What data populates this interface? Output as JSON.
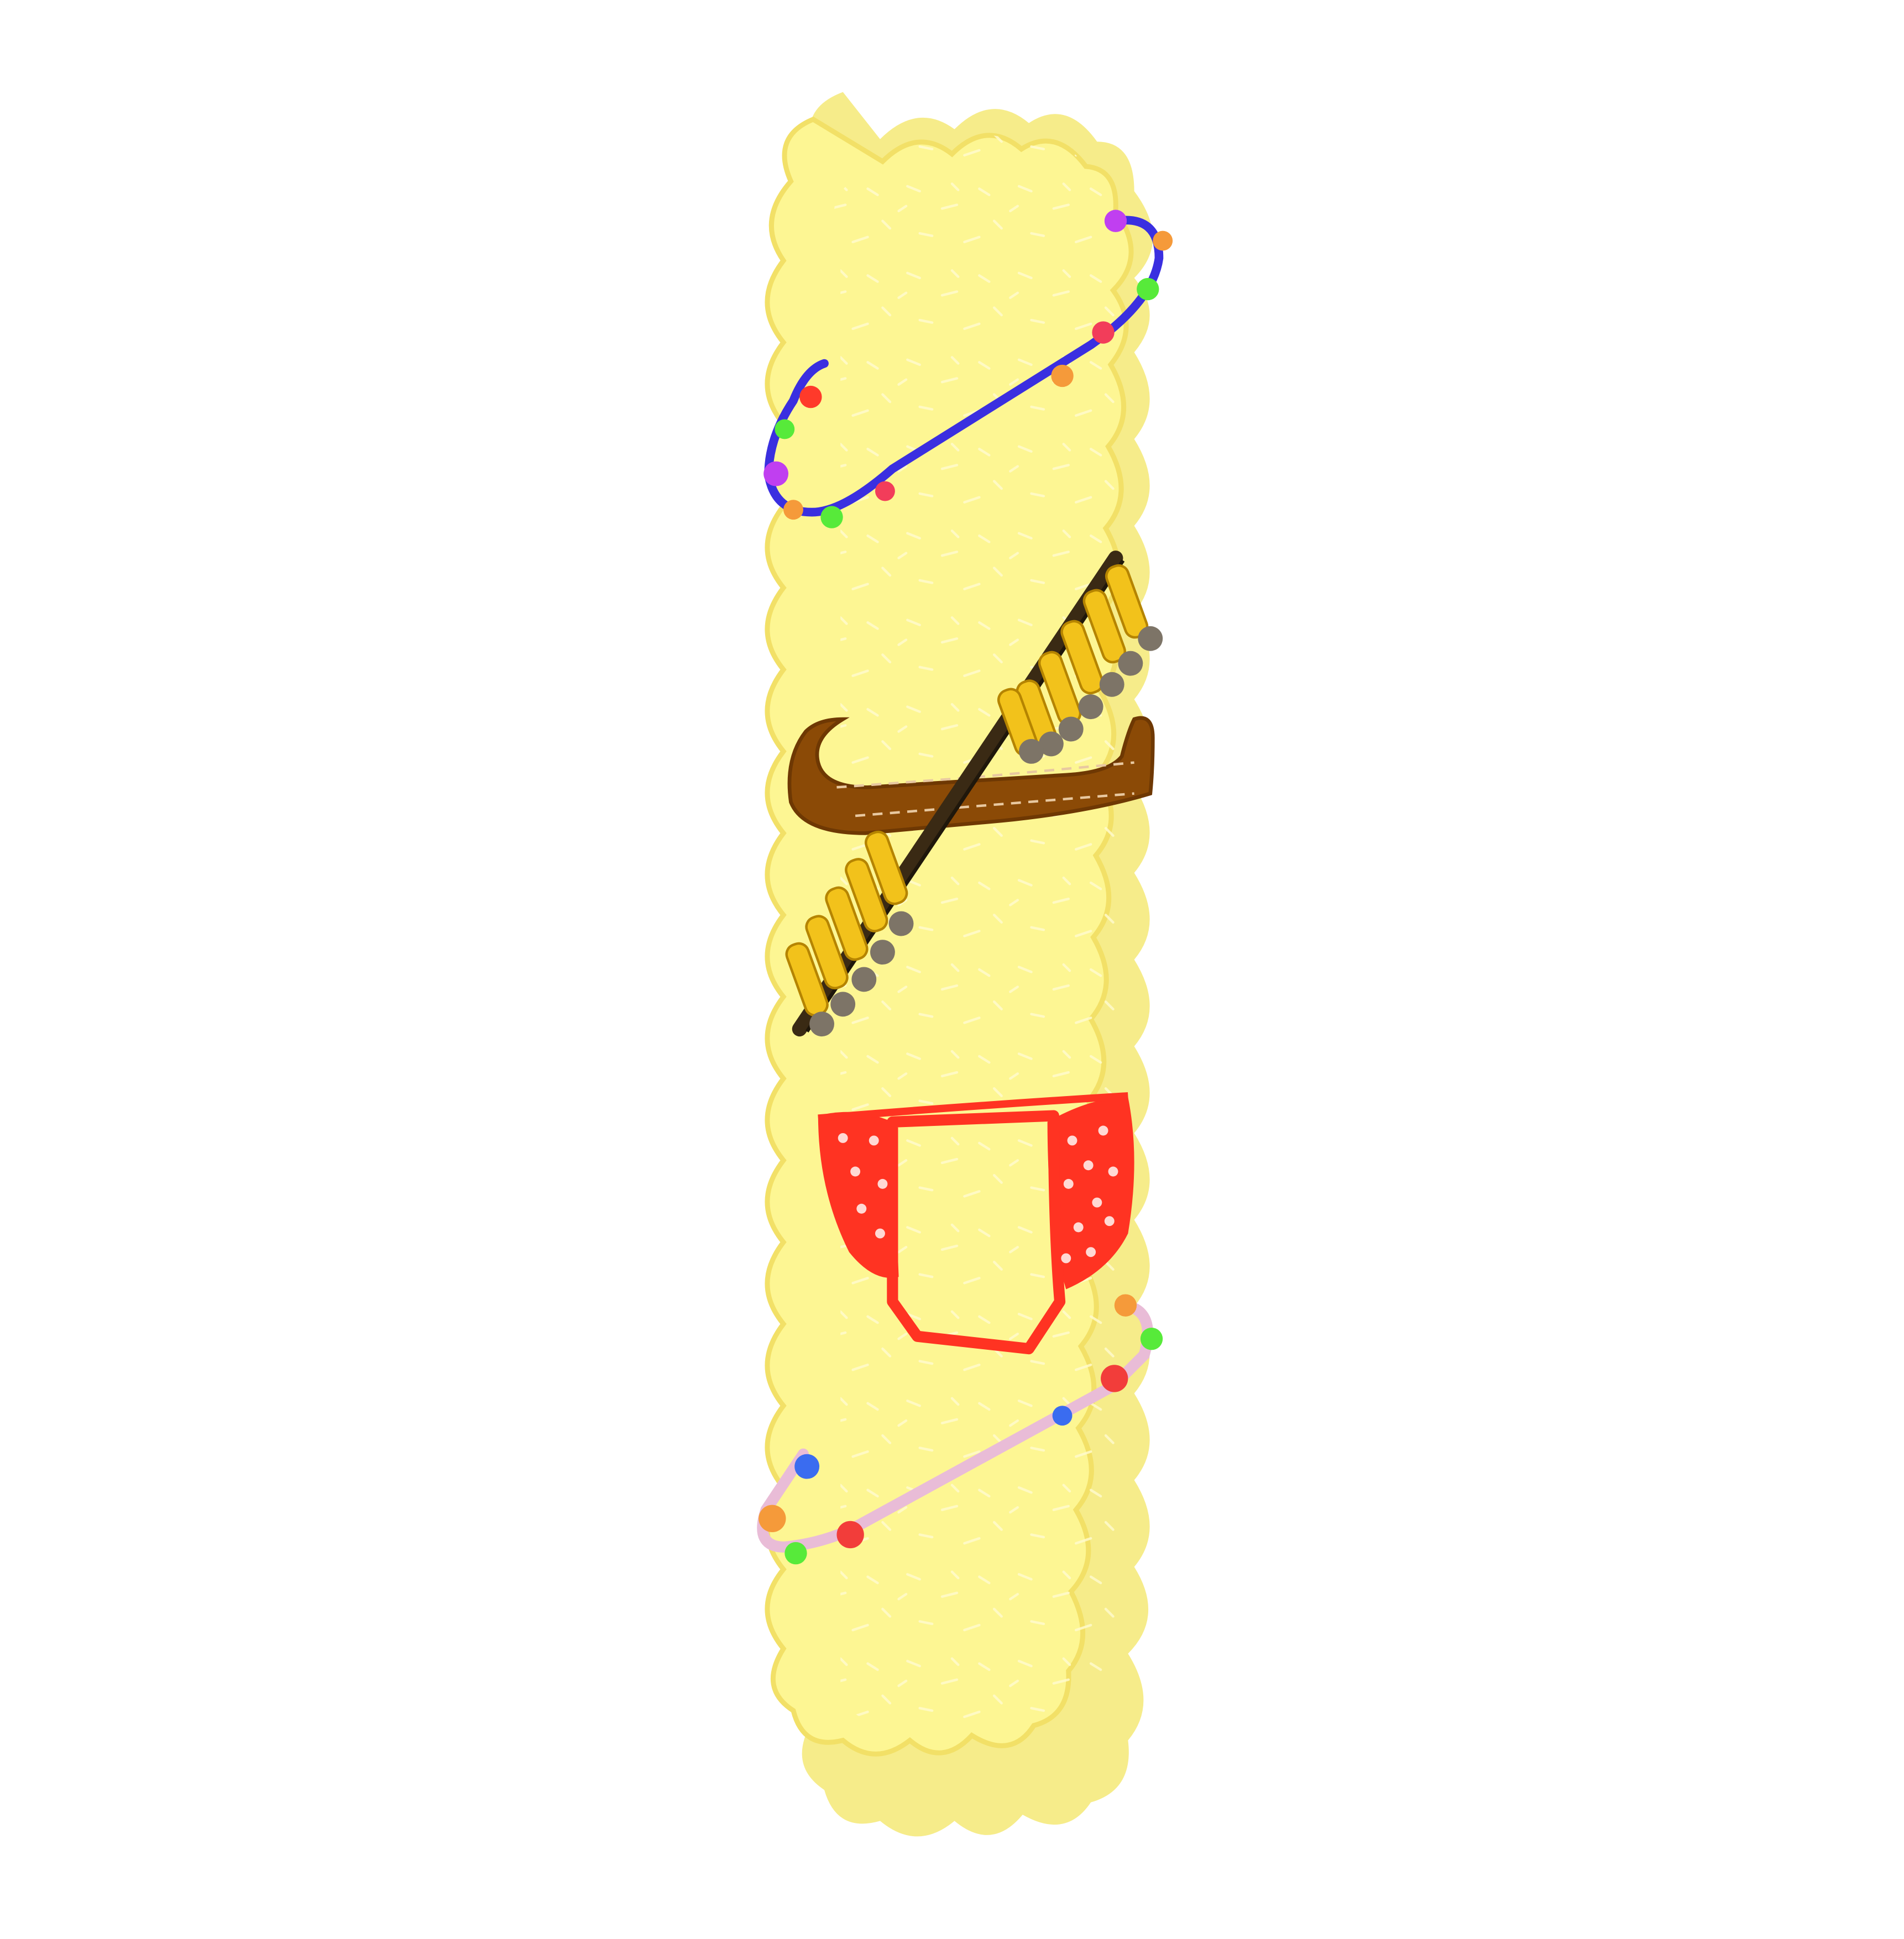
{
  "illustration": {
    "subject": "letter-i-cartoon-pillar",
    "colors": {
      "background": "#ffffff",
      "body_fill": "#fdf693",
      "body_outline": "#f2e067",
      "body_shadow": "#f6ec8a",
      "body_speckle": "#fffbd0",
      "bead_string_top": "#3a2fe0",
      "bead_string_bottom": "#e9bcd7",
      "belt_brown": "#8b4a06",
      "bandolier_strap": "#3a2a14",
      "cartridge_gold": "#f2c21b",
      "cartridge_grey": "#7d7467",
      "bikini_red": "#ff3322",
      "bikini_dot": "#ffd9d4"
    },
    "bead_colors": {
      "magenta": "#c03ff0",
      "orange": "#f59a3a",
      "green": "#57ea3a",
      "red": "#f23d5a",
      "blue": "#3a6cf0"
    }
  }
}
